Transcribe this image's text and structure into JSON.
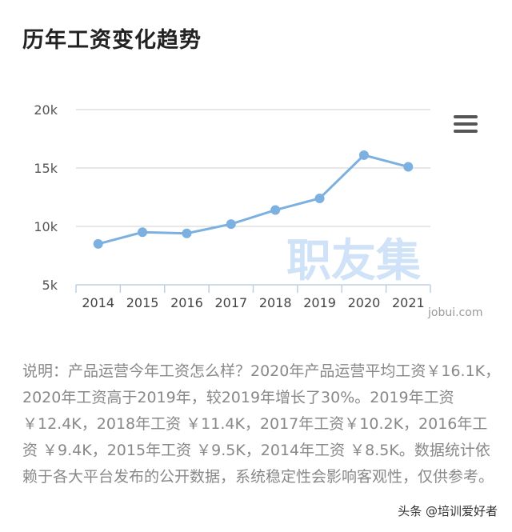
{
  "title": "历年工资变化趋势",
  "menu_icon": "hamburger-menu-icon",
  "watermark": "职友集",
  "source": "jobui.com",
  "description": "说明：产品运营今年工资怎么样？2020年产品运营平均工资￥16.1K，2020年工资高于2019年，较2019年增长了30%。2019年工资 ￥12.4K，2018年工资 ￥11.4K，2017年工资￥10.2K，2016年工资 ￥9.4K，2015年工资 ￥9.5K，2014年工资 ￥8.5K。数据统计依赖于各大平台发布的公开数据，系统稳定性会影响客观性，仅供参考。",
  "footer": "头条 @培训爱好者",
  "colors": {
    "line": "#7cb0e0",
    "point": "#7cb0e0",
    "grid": "#cfcfcf",
    "axis": "#bfcfe3",
    "watermark": "#cfe2f7"
  },
  "chart_data": {
    "type": "line",
    "categories": [
      "2014",
      "2015",
      "2016",
      "2017",
      "2018",
      "2019",
      "2020",
      "2021"
    ],
    "values": [
      8.5,
      9.5,
      9.4,
      10.2,
      11.4,
      12.4,
      16.1,
      15.1
    ],
    "yticks": [
      "5k",
      "10k",
      "15k",
      "20k"
    ],
    "ylim": [
      5,
      20
    ],
    "grid": true,
    "legend": "none"
  }
}
